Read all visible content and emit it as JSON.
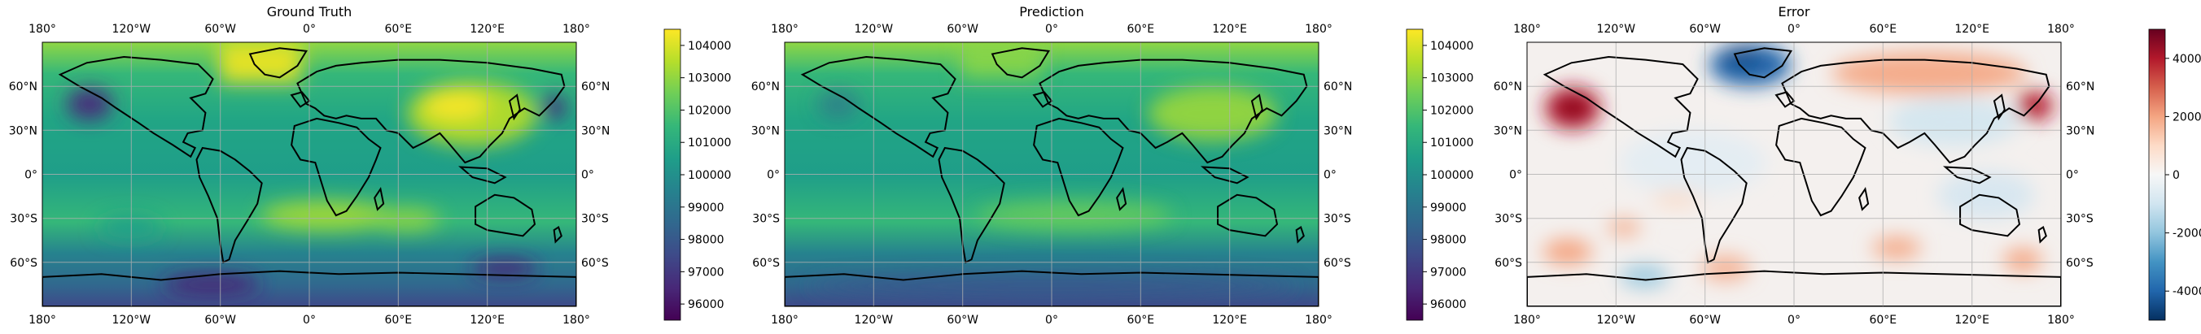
{
  "panels": [
    {
      "title": "Ground Truth",
      "colormap": "viridis",
      "colorbar_ticks": [
        "104000",
        "103000",
        "102000",
        "101000",
        "100000",
        "99000",
        "98000",
        "97000",
        "96000"
      ],
      "colorbar_tick_values": [
        104000,
        103000,
        102000,
        101000,
        100000,
        99000,
        98000,
        97000,
        96000
      ],
      "colorbar_range": [
        95500,
        104500
      ]
    },
    {
      "title": "Prediction",
      "colormap": "viridis",
      "colorbar_ticks": [
        "104000",
        "103000",
        "102000",
        "101000",
        "100000",
        "99000",
        "98000",
        "97000",
        "96000"
      ],
      "colorbar_tick_values": [
        104000,
        103000,
        102000,
        101000,
        100000,
        99000,
        98000,
        97000,
        96000
      ],
      "colorbar_range": [
        95500,
        104500
      ]
    },
    {
      "title": "Error",
      "colormap": "RdBu_r",
      "colorbar_ticks": [
        "4000",
        "2000",
        "0",
        "-2000",
        "-4000"
      ],
      "colorbar_tick_values": [
        4000,
        2000,
        0,
        -2000,
        -4000
      ],
      "colorbar_range": [
        -5000,
        5000
      ]
    }
  ],
  "lon_labels": [
    "180°",
    "120°W",
    "60°W",
    "0°",
    "60°E",
    "120°E",
    "180°"
  ],
  "lat_labels_left": [
    "60°N",
    "30°N",
    "0°",
    "30°S",
    "60°S"
  ],
  "lat_labels_right": [
    "60°N",
    "30°N",
    "0°",
    "30°S",
    "60°S"
  ],
  "colors": {
    "viridis": [
      "#440154",
      "#482878",
      "#3e4a89",
      "#31688e",
      "#26828e",
      "#1f9e89",
      "#35b779",
      "#6ece58",
      "#b5de2b",
      "#fde725"
    ],
    "rdbu": [
      "#053061",
      "#2166ac",
      "#4393c3",
      "#92c5de",
      "#d1e5f0",
      "#f7f7f7",
      "#fddbc7",
      "#f4a582",
      "#d6604d",
      "#b2182b",
      "#67001f"
    ],
    "coastline": "#000000",
    "grid": "#b0b0b0"
  }
}
